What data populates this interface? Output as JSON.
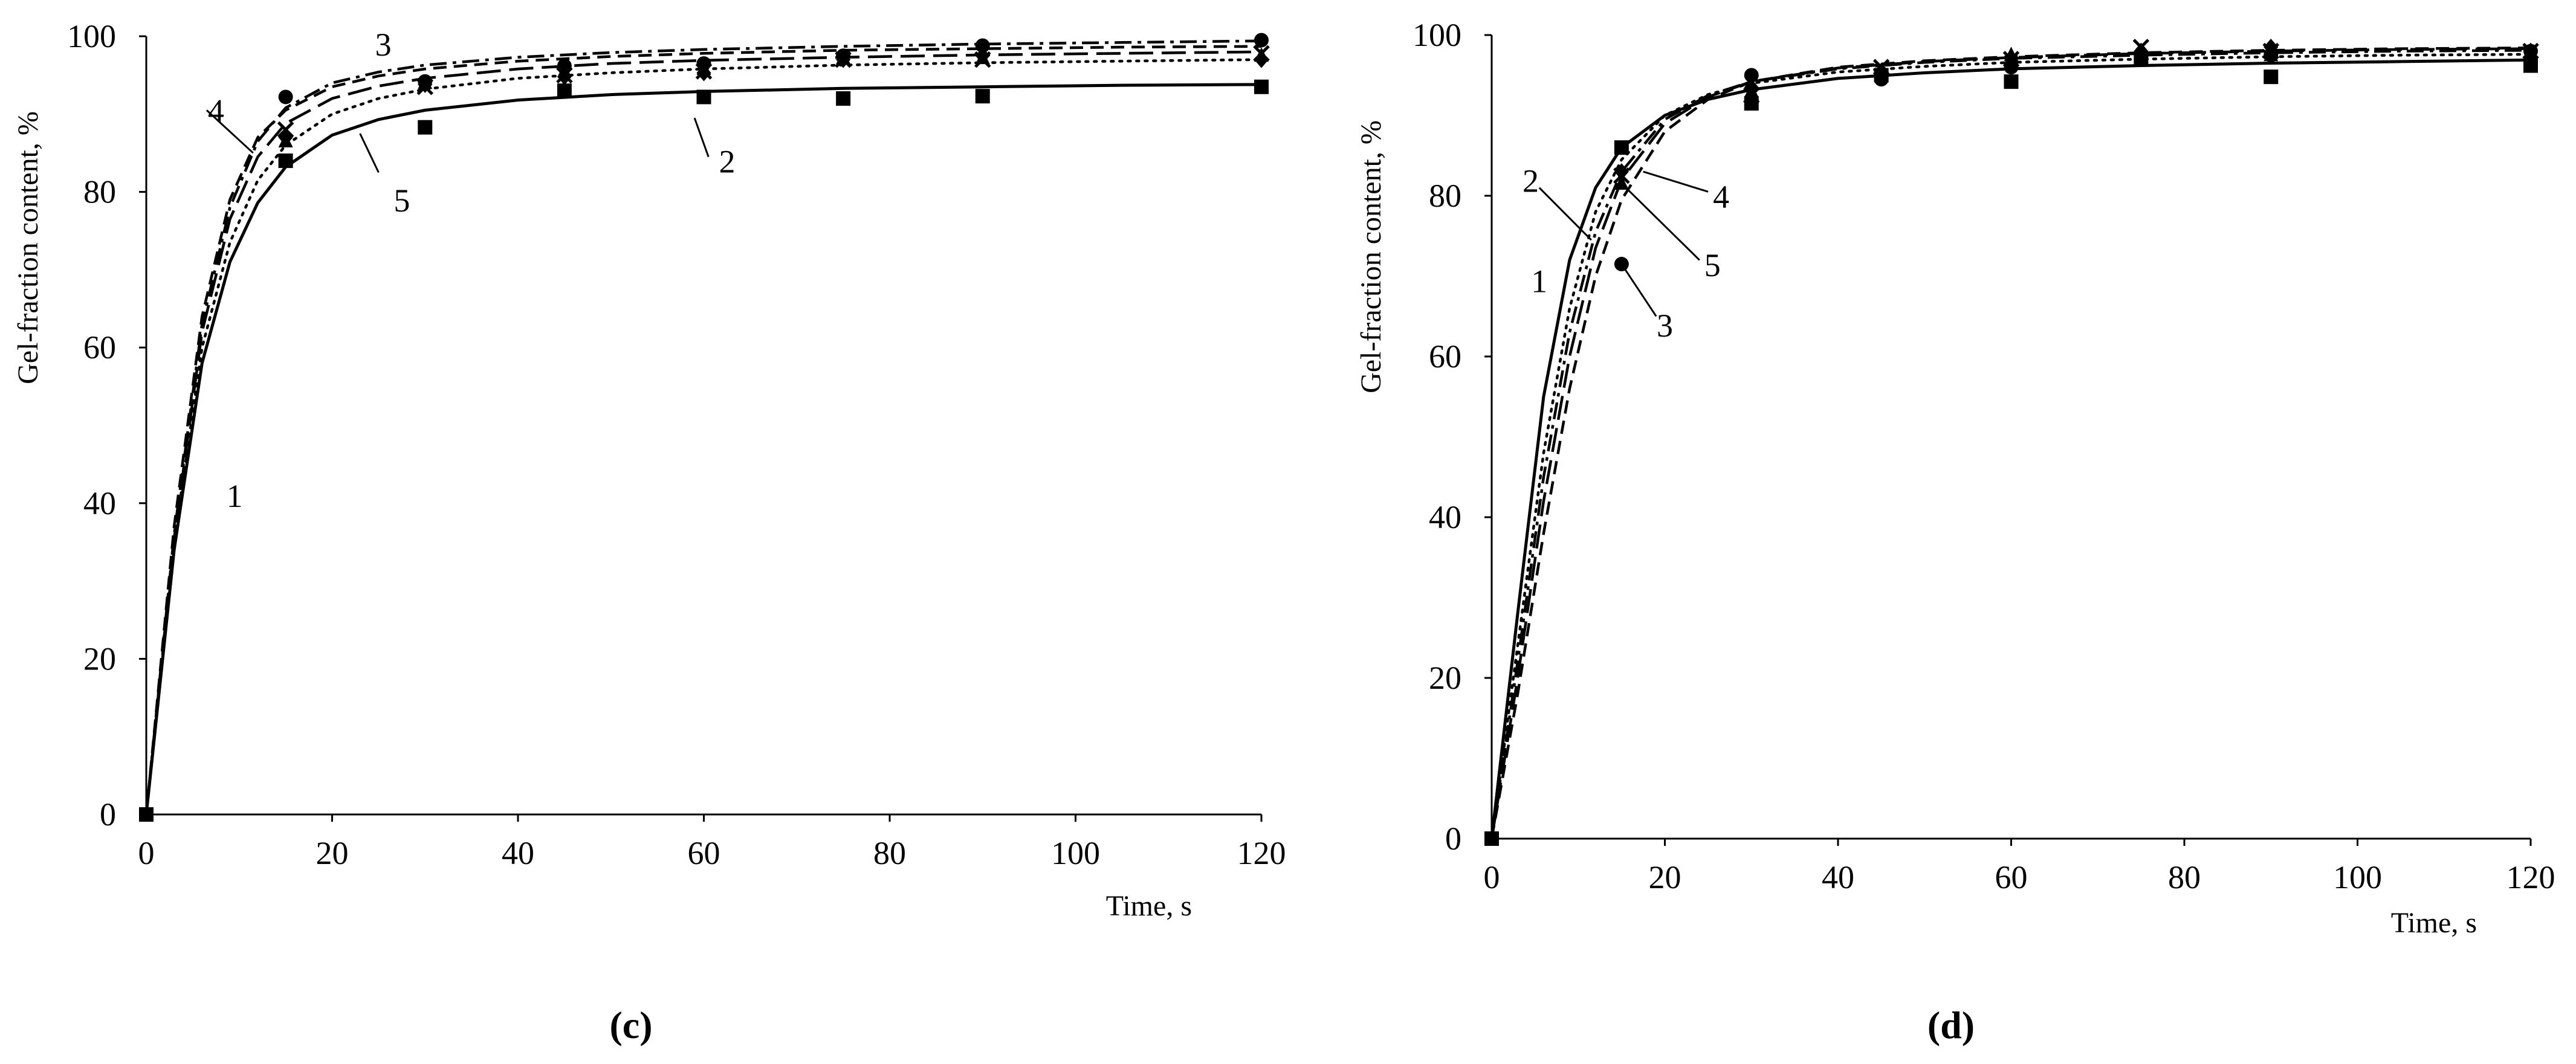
{
  "chart_data": [
    {
      "panel": "(c)",
      "type": "scatter",
      "xlabel": "Time, s",
      "ylabel": "Gel-fraction content, %",
      "xlim": [
        0,
        120
      ],
      "ylim": [
        0,
        100
      ],
      "xticks": [
        0,
        20,
        40,
        60,
        80,
        100,
        120
      ],
      "yticks": [
        0,
        20,
        40,
        60,
        80,
        100
      ],
      "grid": false,
      "legend": "none",
      "series": [
        {
          "name": "1",
          "marker": "square",
          "line": "solid",
          "x": [
            0,
            15,
            30,
            45,
            60,
            75,
            90,
            120
          ],
          "y": [
            0,
            84.0,
            88.3,
            93.0,
            92.2,
            92.0,
            92.3,
            93.5
          ],
          "fit": {
            "x": [
              0,
              3,
              6,
              9,
              12,
              15,
              20,
              25,
              30,
              40,
              50,
              60,
              75,
              90,
              105,
              120
            ],
            "y": [
              0,
              34.0,
              58.0,
              71.0,
              78.6,
              83.2,
              87.3,
              89.3,
              90.5,
              91.8,
              92.5,
              92.9,
              93.3,
              93.5,
              93.7,
              93.8
            ]
          }
        },
        {
          "name": "2",
          "marker": "triangle",
          "line": "dotted",
          "x": [
            15,
            30,
            45,
            60,
            75,
            90,
            120
          ],
          "y": [
            86.5,
            94.0,
            95.5,
            95.8,
            97.2,
            97.2,
            97.5
          ],
          "fit": {
            "x": [
              0,
              3,
              6,
              9,
              12,
              15,
              20,
              25,
              30,
              40,
              50,
              60,
              75,
              90,
              105,
              120
            ],
            "y": [
              0,
              35.0,
              60.0,
              73.5,
              81.5,
              86.0,
              90.0,
              92.0,
              93.2,
              94.6,
              95.3,
              95.8,
              96.3,
              96.6,
              96.8,
              97.0
            ]
          }
        },
        {
          "name": "3",
          "marker": "circle",
          "line": "dash-dot",
          "x": [
            15,
            30,
            45,
            60,
            75,
            90,
            120
          ],
          "y": [
            92.2,
            94.2,
            96.2,
            96.5,
            97.5,
            98.8,
            99.5
          ],
          "fit": {
            "x": [
              0,
              3,
              6,
              9,
              12,
              15,
              20,
              25,
              30,
              40,
              50,
              60,
              75,
              90,
              105,
              120
            ],
            "y": [
              0,
              36.0,
              63.0,
              78.0,
              86.5,
              90.8,
              94.0,
              95.4,
              96.3,
              97.3,
              97.9,
              98.3,
              98.7,
              99.0,
              99.2,
              99.4
            ]
          }
        },
        {
          "name": "4",
          "marker": "diamond",
          "line": "dashed",
          "x": [
            15,
            30,
            45,
            60,
            75,
            90,
            120
          ],
          "y": [
            87.0,
            93.8,
            94.8,
            95.3,
            97.0,
            97.5,
            97.0
          ],
          "fit": {
            "x": [
              0,
              3,
              6,
              9,
              12,
              15,
              20,
              25,
              30,
              40,
              50,
              60,
              75,
              90,
              105,
              120
            ],
            "y": [
              0,
              37.0,
              64.0,
              79.0,
              87.0,
              90.5,
              93.5,
              94.9,
              95.8,
              96.8,
              97.4,
              97.8,
              98.2,
              98.4,
              98.6,
              98.7
            ]
          }
        },
        {
          "name": "5",
          "marker": "cross",
          "line": "long-dash",
          "x": [
            15,
            30,
            45,
            60,
            75,
            90,
            120
          ],
          "y": [
            88.0,
            93.5,
            95.0,
            95.5,
            97.0,
            97.0,
            97.8
          ],
          "fit": {
            "x": [
              0,
              3,
              6,
              9,
              12,
              15,
              20,
              25,
              30,
              40,
              50,
              60,
              75,
              90,
              105,
              120
            ],
            "y": [
              0,
              35.5,
              62.0,
              76.5,
              84.5,
              88.8,
              92.0,
              93.6,
              94.6,
              95.8,
              96.5,
              96.9,
              97.3,
              97.6,
              97.8,
              98.0
            ]
          }
        }
      ],
      "annotations": [
        {
          "text": "1",
          "x": 9.5,
          "y": 39.5
        },
        {
          "text": "2",
          "x": 62.5,
          "y": 82.5
        },
        {
          "text": "3",
          "x": 25.5,
          "y": 97.5
        },
        {
          "text": "4",
          "x": 7.5,
          "y": 89.0
        },
        {
          "text": "5",
          "x": 27.5,
          "y": 77.5
        }
      ]
    },
    {
      "panel": "(d)",
      "type": "scatter",
      "xlabel": "Time, s",
      "ylabel": "Gel-fraction content, %",
      "xlim": [
        0,
        120
      ],
      "ylim": [
        0,
        100
      ],
      "xticks": [
        0,
        20,
        40,
        60,
        80,
        100,
        120
      ],
      "yticks": [
        0,
        20,
        40,
        60,
        80,
        100
      ],
      "grid": false,
      "legend": "none",
      "series": [
        {
          "name": "1",
          "marker": "square",
          "line": "solid",
          "x": [
            0,
            15,
            30,
            45,
            60,
            75,
            90,
            120
          ],
          "y": [
            0,
            86.0,
            91.5,
            95.0,
            94.2,
            97.0,
            94.8,
            96.2
          ],
          "fit": {
            "x": [
              0,
              3,
              6,
              9,
              12,
              15,
              20,
              25,
              30,
              40,
              50,
              60,
              75,
              90,
              105,
              120
            ],
            "y": [
              0,
              28.0,
              55.0,
              72.0,
              81.0,
              86.0,
              90.0,
              92.0,
              93.2,
              94.6,
              95.3,
              95.8,
              96.2,
              96.5,
              96.7,
              96.9
            ]
          }
        },
        {
          "name": "2",
          "marker": "triangle",
          "line": "dotted",
          "x": [
            15,
            30,
            45,
            60,
            75,
            90,
            120
          ],
          "y": [
            81.5,
            93.0,
            95.5,
            97.5,
            98.0,
            97.5,
            97.5
          ],
          "fit": {
            "x": [
              0,
              3,
              6,
              9,
              12,
              15,
              20,
              25,
              30,
              40,
              50,
              60,
              75,
              90,
              105,
              120
            ],
            "y": [
              0,
              24.0,
              48.0,
              66.0,
              78.0,
              84.5,
              90.0,
              92.6,
              94.0,
              95.4,
              96.1,
              96.6,
              97.0,
              97.3,
              97.5,
              97.6
            ]
          }
        },
        {
          "name": "3",
          "marker": "circle",
          "line": "dash-dot",
          "x": [
            15,
            30,
            45,
            60,
            75,
            90,
            120
          ],
          "y": [
            71.5,
            95.0,
            94.5,
            96.0,
            97.0,
            97.5,
            98.0
          ],
          "fit": {
            "x": [
              0,
              3,
              6,
              9,
              12,
              15,
              20,
              25,
              30,
              40,
              50,
              60,
              75,
              90,
              105,
              120
            ],
            "y": [
              0,
              22.0,
              45.0,
              63.0,
              75.5,
              83.0,
              89.5,
              92.5,
              94.2,
              95.8,
              96.6,
              97.1,
              97.5,
              97.8,
              98.0,
              98.1
            ]
          }
        },
        {
          "name": "4",
          "marker": "diamond",
          "line": "dashed",
          "x": [
            15,
            30,
            45,
            60,
            75,
            90,
            120
          ],
          "y": [
            83.0,
            93.5,
            95.5,
            96.5,
            98.0,
            98.5,
            98.0
          ],
          "fit": {
            "x": [
              0,
              3,
              6,
              9,
              12,
              15,
              20,
              25,
              30,
              40,
              50,
              60,
              75,
              90,
              105,
              120
            ],
            "y": [
              0,
              18.0,
              38.0,
              56.0,
              70.0,
              79.5,
              88.0,
              92.0,
              94.2,
              96.0,
              96.8,
              97.3,
              97.8,
              98.1,
              98.3,
              98.4
            ]
          }
        },
        {
          "name": "5",
          "marker": "cross",
          "line": "long-dash",
          "x": [
            15,
            30,
            45,
            60,
            75,
            90,
            120
          ],
          "y": [
            82.5,
            92.5,
            96.0,
            97.0,
            98.5,
            98.0,
            98.0
          ],
          "fit": {
            "x": [
              0,
              3,
              6,
              9,
              12,
              15,
              20,
              25,
              30,
              40,
              50,
              60,
              75,
              90,
              105,
              120
            ],
            "y": [
              0,
              20.0,
              42.0,
              60.0,
              73.5,
              82.0,
              89.0,
              92.3,
              94.2,
              95.9,
              96.7,
              97.2,
              97.7,
              98.0,
              98.2,
              98.3
            ]
          }
        }
      ],
      "annotations": [
        {
          "text": "1",
          "x": 5.5,
          "y": 68.0
        },
        {
          "text": "2",
          "x": 4.5,
          "y": 80.5
        },
        {
          "text": "3",
          "x": 20.0,
          "y": 62.5
        },
        {
          "text": "4",
          "x": 26.5,
          "y": 78.5
        },
        {
          "text": "5",
          "x": 25.5,
          "y": 70.0
        }
      ]
    }
  ]
}
